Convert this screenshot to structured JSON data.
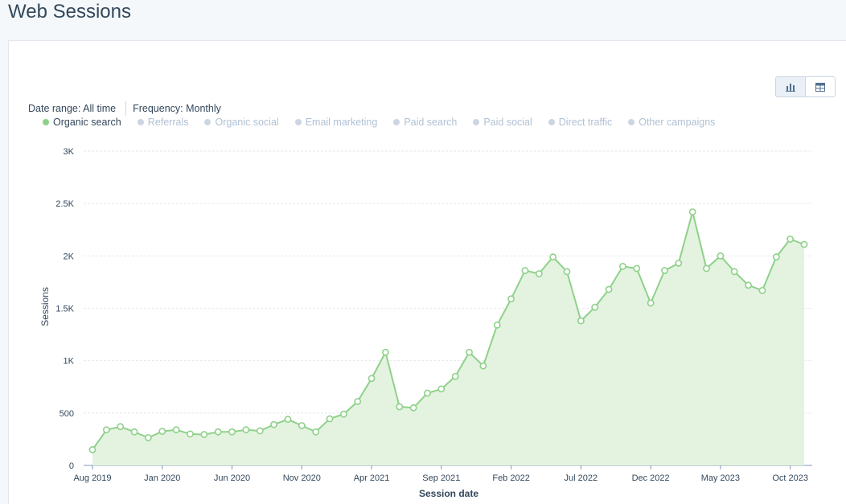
{
  "page": {
    "title": "Web Sessions"
  },
  "filters": {
    "date_range": "Date range: All time",
    "frequency": "Frequency: Monthly"
  },
  "view_toggle": {
    "active": "chart-icon",
    "options": [
      "chart-icon",
      "table-icon"
    ]
  },
  "legend": [
    {
      "label": "Organic search",
      "active": true,
      "color": "#8fd18a"
    },
    {
      "label": "Referrals",
      "active": false
    },
    {
      "label": "Organic social",
      "active": false
    },
    {
      "label": "Email marketing",
      "active": false
    },
    {
      "label": "Paid search",
      "active": false
    },
    {
      "label": "Paid social",
      "active": false
    },
    {
      "label": "Direct traffic",
      "active": false
    },
    {
      "label": "Other campaigns",
      "active": false
    }
  ],
  "chart_data": {
    "type": "area",
    "xlabel": "Session date",
    "ylabel": "Sessions",
    "ylim": [
      0,
      3000
    ],
    "yticks": [
      0,
      500,
      1000,
      1500,
      2000,
      2500,
      3000
    ],
    "ytick_labels": [
      "0",
      "500",
      "1K",
      "1.5K",
      "2K",
      "2.5K",
      "3K"
    ],
    "xtick_labels": [
      "Aug 2019",
      "Jan 2020",
      "Jun 2020",
      "Nov 2020",
      "Apr 2021",
      "Sep 2021",
      "Feb 2022",
      "Jul 2022",
      "Dec 2022",
      "May 2023",
      "Oct 2023"
    ],
    "xtick_every": 5,
    "grid": true,
    "series": [
      {
        "name": "Organic search",
        "color": "#8fd18a",
        "x": [
          "Aug 2019",
          "Sep 2019",
          "Oct 2019",
          "Nov 2019",
          "Dec 2019",
          "Jan 2020",
          "Feb 2020",
          "Mar 2020",
          "Apr 2020",
          "May 2020",
          "Jun 2020",
          "Jul 2020",
          "Aug 2020",
          "Sep 2020",
          "Oct 2020",
          "Nov 2020",
          "Dec 2020",
          "Jan 2021",
          "Feb 2021",
          "Mar 2021",
          "Apr 2021",
          "May 2021",
          "Jun 2021",
          "Jul 2021",
          "Aug 2021",
          "Sep 2021",
          "Oct 2021",
          "Nov 2021",
          "Dec 2021",
          "Jan 2022",
          "Feb 2022",
          "Mar 2022",
          "Apr 2022",
          "May 2022",
          "Jun 2022",
          "Jul 2022",
          "Aug 2022",
          "Sep 2022",
          "Oct 2022",
          "Nov 2022",
          "Dec 2022",
          "Jan 2023",
          "Feb 2023",
          "Mar 2023",
          "Apr 2023",
          "May 2023",
          "Jun 2023",
          "Jul 2023",
          "Aug 2023",
          "Sep 2023",
          "Oct 2023",
          "Nov 2023"
        ],
        "values": [
          150,
          340,
          370,
          320,
          265,
          325,
          340,
          300,
          295,
          320,
          320,
          340,
          330,
          390,
          440,
          380,
          320,
          445,
          490,
          610,
          830,
          1080,
          560,
          550,
          690,
          730,
          850,
          1080,
          950,
          1340,
          1590,
          1860,
          1830,
          1990,
          1850,
          1380,
          1510,
          1680,
          1900,
          1880,
          1550,
          1860,
          1930,
          2420,
          1880,
          2000,
          1850,
          1720,
          1670,
          1990,
          2160,
          2110
        ]
      }
    ]
  }
}
